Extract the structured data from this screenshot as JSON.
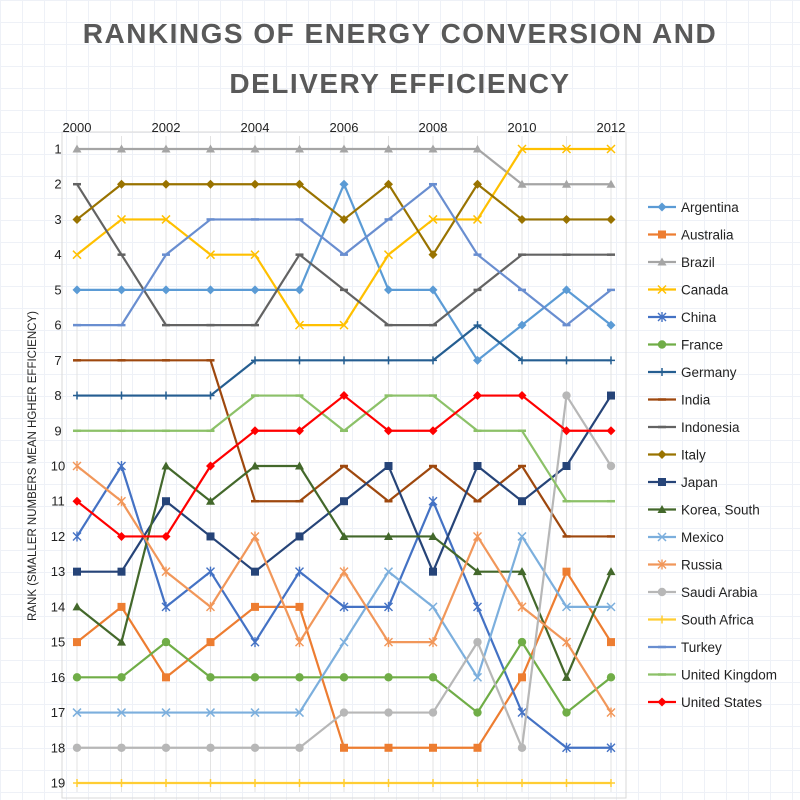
{
  "chart_data": {
    "type": "line",
    "title_line1": "RANKINGS OF ENERGY CONVERSION AND",
    "title_line2": "DELIVERY EFFICIENCY",
    "ylabel": "RANK (SMALLER NUMBERS MEAN HGHER EFFICIENCY)",
    "xlabel": "",
    "x": [
      2000,
      2001,
      2002,
      2003,
      2004,
      2005,
      2006,
      2007,
      2008,
      2009,
      2010,
      2011,
      2012
    ],
    "x_tick_labels": [
      "2000",
      "2002",
      "2004",
      "2006",
      "2008",
      "2010",
      "2012"
    ],
    "y_tick_labels": [
      "1",
      "2",
      "3",
      "4",
      "5",
      "6",
      "7",
      "8",
      "9",
      "10",
      "11",
      "12",
      "13",
      "14",
      "15",
      "16",
      "17",
      "18",
      "19"
    ],
    "ylim": [
      1,
      19
    ],
    "y_inverted": true,
    "legend_position": "right",
    "series": [
      {
        "name": "Argentina",
        "color": "#5b9bd5",
        "marker": "diamond",
        "values": [
          5,
          5,
          5,
          5,
          5,
          5,
          2,
          5,
          5,
          7,
          6,
          5,
          6
        ]
      },
      {
        "name": "Australia",
        "color": "#ed7d31",
        "marker": "square",
        "values": [
          15,
          14,
          16,
          15,
          14,
          14,
          18,
          18,
          18,
          18,
          16,
          13,
          15
        ]
      },
      {
        "name": "Brazil",
        "color": "#a5a5a5",
        "marker": "triangle",
        "values": [
          1,
          1,
          1,
          1,
          1,
          1,
          1,
          1,
          1,
          1,
          2,
          2,
          2
        ]
      },
      {
        "name": "Canada",
        "color": "#ffc000",
        "marker": "x",
        "values": [
          4,
          3,
          3,
          4,
          4,
          6,
          6,
          4,
          3,
          3,
          1,
          1,
          1
        ]
      },
      {
        "name": "China",
        "color": "#4472c4",
        "marker": "star",
        "values": [
          12,
          10,
          14,
          13,
          15,
          13,
          14,
          14,
          11,
          14,
          17,
          18,
          18
        ]
      },
      {
        "name": "France",
        "color": "#70ad47",
        "marker": "circle",
        "values": [
          16,
          16,
          15,
          16,
          16,
          16,
          16,
          16,
          16,
          17,
          15,
          17,
          16
        ]
      },
      {
        "name": "Germany",
        "color": "#255e91",
        "marker": "plus",
        "values": [
          8,
          8,
          8,
          8,
          7,
          7,
          7,
          7,
          7,
          6,
          7,
          7,
          7
        ]
      },
      {
        "name": "India",
        "color": "#9e480e",
        "marker": "dash",
        "values": [
          7,
          7,
          7,
          7,
          11,
          11,
          10,
          11,
          10,
          11,
          10,
          12,
          12
        ]
      },
      {
        "name": "Indonesia",
        "color": "#636363",
        "marker": "dash",
        "values": [
          2,
          4,
          6,
          6,
          6,
          4,
          5,
          6,
          6,
          5,
          4,
          4,
          4
        ]
      },
      {
        "name": "Italy",
        "color": "#997300",
        "marker": "diamond",
        "values": [
          3,
          2,
          2,
          2,
          2,
          2,
          3,
          2,
          4,
          2,
          3,
          3,
          3
        ]
      },
      {
        "name": "Japan",
        "color": "#264478",
        "marker": "square",
        "values": [
          13,
          13,
          11,
          12,
          13,
          12,
          11,
          10,
          13,
          10,
          11,
          10,
          8
        ]
      },
      {
        "name": "Korea, South",
        "color": "#43682b",
        "marker": "triangle",
        "values": [
          14,
          15,
          10,
          11,
          10,
          10,
          12,
          12,
          12,
          13,
          13,
          16,
          13
        ]
      },
      {
        "name": "Mexico",
        "color": "#7cafdd",
        "marker": "x",
        "values": [
          17,
          17,
          17,
          17,
          17,
          17,
          15,
          13,
          14,
          16,
          12,
          14,
          14
        ]
      },
      {
        "name": "Russia",
        "color": "#f1975a",
        "marker": "star",
        "values": [
          10,
          11,
          13,
          14,
          12,
          15,
          13,
          15,
          15,
          12,
          14,
          15,
          17
        ]
      },
      {
        "name": "Saudi Arabia",
        "color": "#b7b7b7",
        "marker": "circle",
        "values": [
          18,
          18,
          18,
          18,
          18,
          18,
          17,
          17,
          17,
          15,
          18,
          8,
          10
        ]
      },
      {
        "name": "South Africa",
        "color": "#ffcd33",
        "marker": "plus",
        "values": [
          19,
          19,
          19,
          19,
          19,
          19,
          19,
          19,
          19,
          19,
          19,
          19,
          19
        ]
      },
      {
        "name": "Turkey",
        "color": "#698ed0",
        "marker": "dash",
        "values": [
          6,
          6,
          4,
          3,
          3,
          3,
          4,
          3,
          2,
          4,
          5,
          6,
          5
        ]
      },
      {
        "name": "United Kingdom",
        "color": "#8cc168",
        "marker": "dash",
        "values": [
          9,
          9,
          9,
          9,
          8,
          8,
          9,
          8,
          8,
          9,
          9,
          11,
          11
        ]
      },
      {
        "name": "United States",
        "color": "#ff0000",
        "marker": "diamond",
        "values": [
          11,
          12,
          12,
          10,
          9,
          9,
          8,
          9,
          9,
          8,
          8,
          9,
          9
        ]
      }
    ]
  }
}
